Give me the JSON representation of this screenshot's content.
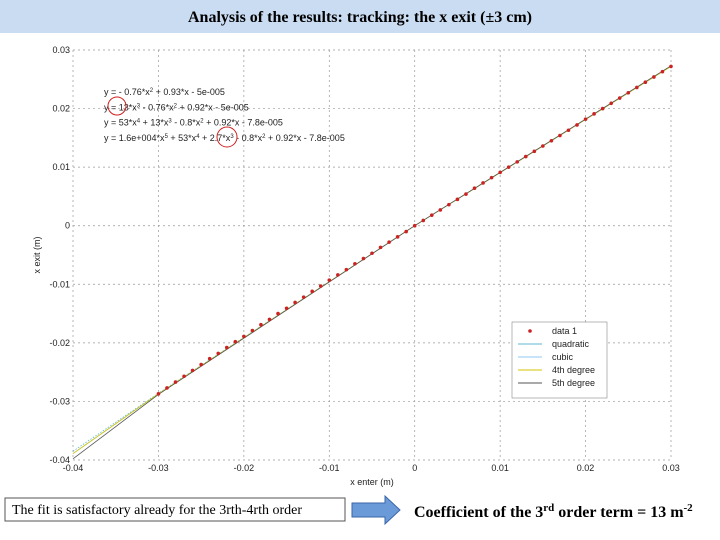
{
  "slide": {
    "title": "Analysis of the results: tracking: the x exit (±3 cm)",
    "note": "The fit is satisfactory already for the 3rth-4rth order",
    "conclusion": [
      "Coefficient of the 3",
      "rd",
      " order term = 13 m",
      "-2"
    ]
  },
  "chart_data": {
    "type": "scatter",
    "xlabel": "x enter (m)",
    "ylabel": "x exit (m)",
    "xlim": [
      -0.04,
      0.03
    ],
    "ylim": [
      -0.04,
      0.03
    ],
    "xticks": [
      -0.04,
      -0.03,
      -0.02,
      -0.01,
      0,
      0.01,
      0.02,
      0.03
    ],
    "yticks": [
      -0.04,
      -0.03,
      -0.02,
      -0.01,
      0,
      0.01,
      0.02,
      0.03
    ],
    "grid": true,
    "legend": "lower right",
    "equations": [
      [
        "y = - 0.76*x",
        "2",
        " + 0.93*x - 5e-005"
      ],
      [
        "y = 13*x",
        "3",
        " - 0.76*x",
        "2",
        " + 0.92*x - 5e-005"
      ],
      [
        "y = 53*x",
        "4",
        " + 13*x",
        "3",
        " - 0.8*x",
        "2",
        " + 0.92*x - 7.8e-005"
      ],
      [
        "y = 1.6e+004*x",
        "5",
        " + 53*x",
        "4",
        " + 2.7*x",
        "3",
        " - 0.8*x",
        "2",
        " + 0.92*x - 7.8e-005"
      ]
    ],
    "series": [
      {
        "name": "data 1",
        "color": "#cc2222",
        "mode": "markers",
        "x": [
          -0.03,
          -0.029,
          -0.028,
          -0.027,
          -0.026,
          -0.025,
          -0.024,
          -0.023,
          -0.022,
          -0.021,
          -0.02,
          -0.019,
          -0.018,
          -0.017,
          -0.016,
          -0.015,
          -0.014,
          -0.013,
          -0.012,
          -0.011,
          -0.01,
          -0.009,
          -0.008,
          -0.007,
          -0.006,
          -0.005,
          -0.004,
          -0.003,
          -0.002,
          -0.001,
          0,
          0.001,
          0.002,
          0.003,
          0.004,
          0.005,
          0.006,
          0.007,
          0.008,
          0.009,
          0.01,
          0.011,
          0.012,
          0.013,
          0.014,
          0.015,
          0.016,
          0.017,
          0.018,
          0.019,
          0.02,
          0.021,
          0.022,
          0.023,
          0.024,
          0.025,
          0.026,
          0.027,
          0.028,
          0.029,
          0.03
        ],
        "values": [
          -0.0287,
          -0.0277,
          -0.0267,
          -0.0257,
          -0.0247,
          -0.0237,
          -0.0227,
          -0.0218,
          -0.0208,
          -0.0198,
          -0.0189,
          -0.0179,
          -0.0169,
          -0.016,
          -0.015,
          -0.0141,
          -0.0131,
          -0.0122,
          -0.0112,
          -0.0103,
          -0.0093,
          -0.0084,
          -0.0075,
          -0.0065,
          -0.0056,
          -0.0047,
          -0.0037,
          -0.0028,
          -0.0019,
          -0.001,
          0,
          0.0009,
          0.0018,
          0.0027,
          0.0036,
          0.0045,
          0.0054,
          0.0064,
          0.0073,
          0.0082,
          0.0091,
          0.01,
          0.0109,
          0.0118,
          0.0127,
          0.0136,
          0.0145,
          0.0154,
          0.0163,
          0.0172,
          0.0182,
          0.0191,
          0.02,
          0.0209,
          0.0218,
          0.0227,
          0.0236,
          0.0245,
          0.0254,
          0.0263,
          0.0272
        ]
      },
      {
        "name": "quadratic",
        "color": "#5fb6d0",
        "mode": "line",
        "x": [
          -0.04,
          -0.03,
          0,
          0.03
        ],
        "values": [
          -0.0385,
          -0.0286,
          0,
          0.0272
        ]
      },
      {
        "name": "cubic",
        "color": "#8fc8f0",
        "mode": "line",
        "x": [
          -0.04,
          -0.03,
          0,
          0.03
        ],
        "values": [
          -0.0389,
          -0.0287,
          0,
          0.0272
        ]
      },
      {
        "name": "4th degree",
        "color": "#d4c400",
        "mode": "line",
        "x": [
          -0.04,
          -0.03,
          0,
          0.03
        ],
        "values": [
          -0.0389,
          -0.0287,
          0,
          0.0272
        ]
      },
      {
        "name": "5th degree",
        "color": "#555555",
        "mode": "line",
        "x": [
          -0.04,
          -0.03,
          0,
          0.03
        ],
        "values": [
          -0.0398,
          -0.0288,
          0,
          0.0273
        ]
      }
    ]
  }
}
